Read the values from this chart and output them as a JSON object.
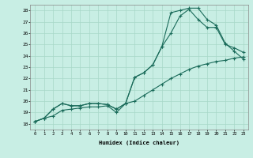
{
  "xlabel": "Humidex (Indice chaleur)",
  "xlim": [
    -0.5,
    23.5
  ],
  "ylim": [
    17.5,
    28.5
  ],
  "xticks": [
    0,
    1,
    2,
    3,
    4,
    5,
    6,
    7,
    8,
    9,
    10,
    11,
    12,
    13,
    14,
    15,
    16,
    17,
    18,
    19,
    20,
    21,
    22,
    23
  ],
  "yticks": [
    18,
    19,
    20,
    21,
    22,
    23,
    24,
    25,
    26,
    27,
    28
  ],
  "bg_color": "#c8eee4",
  "line_color": "#1a6b5a",
  "grid_color": "#a8d8c8",
  "curve1_x": [
    0,
    1,
    2,
    3,
    4,
    5,
    6,
    7,
    8,
    9,
    10,
    11,
    12,
    13,
    14,
    15,
    16,
    17,
    18,
    19,
    20,
    21,
    22,
    23
  ],
  "curve1_y": [
    18.2,
    18.5,
    19.3,
    19.8,
    19.6,
    19.6,
    19.8,
    19.8,
    19.7,
    19.3,
    19.8,
    22.1,
    22.5,
    23.2,
    24.8,
    27.8,
    28.0,
    28.2,
    28.2,
    27.2,
    26.7,
    25.1,
    24.4,
    23.7
  ],
  "curve2_x": [
    0,
    1,
    2,
    3,
    4,
    5,
    6,
    7,
    8,
    9,
    10,
    11,
    12,
    13,
    14,
    15,
    16,
    17,
    18,
    19,
    20,
    21,
    22,
    23
  ],
  "curve2_y": [
    18.2,
    18.5,
    19.3,
    19.8,
    19.6,
    19.6,
    19.8,
    19.8,
    19.7,
    19.3,
    19.8,
    22.1,
    22.5,
    23.2,
    24.8,
    26.0,
    27.5,
    28.1,
    27.2,
    26.5,
    26.5,
    25.0,
    24.7,
    24.3
  ],
  "curve3_x": [
    0,
    1,
    2,
    3,
    4,
    5,
    6,
    7,
    8,
    9,
    10,
    11,
    12,
    13,
    14,
    15,
    16,
    17,
    18,
    19,
    20,
    21,
    22,
    23
  ],
  "curve3_y": [
    18.2,
    18.5,
    18.7,
    19.2,
    19.3,
    19.4,
    19.5,
    19.5,
    19.6,
    19.0,
    19.8,
    20.0,
    20.5,
    21.0,
    21.5,
    22.0,
    22.4,
    22.8,
    23.1,
    23.3,
    23.5,
    23.6,
    23.8,
    23.9
  ]
}
